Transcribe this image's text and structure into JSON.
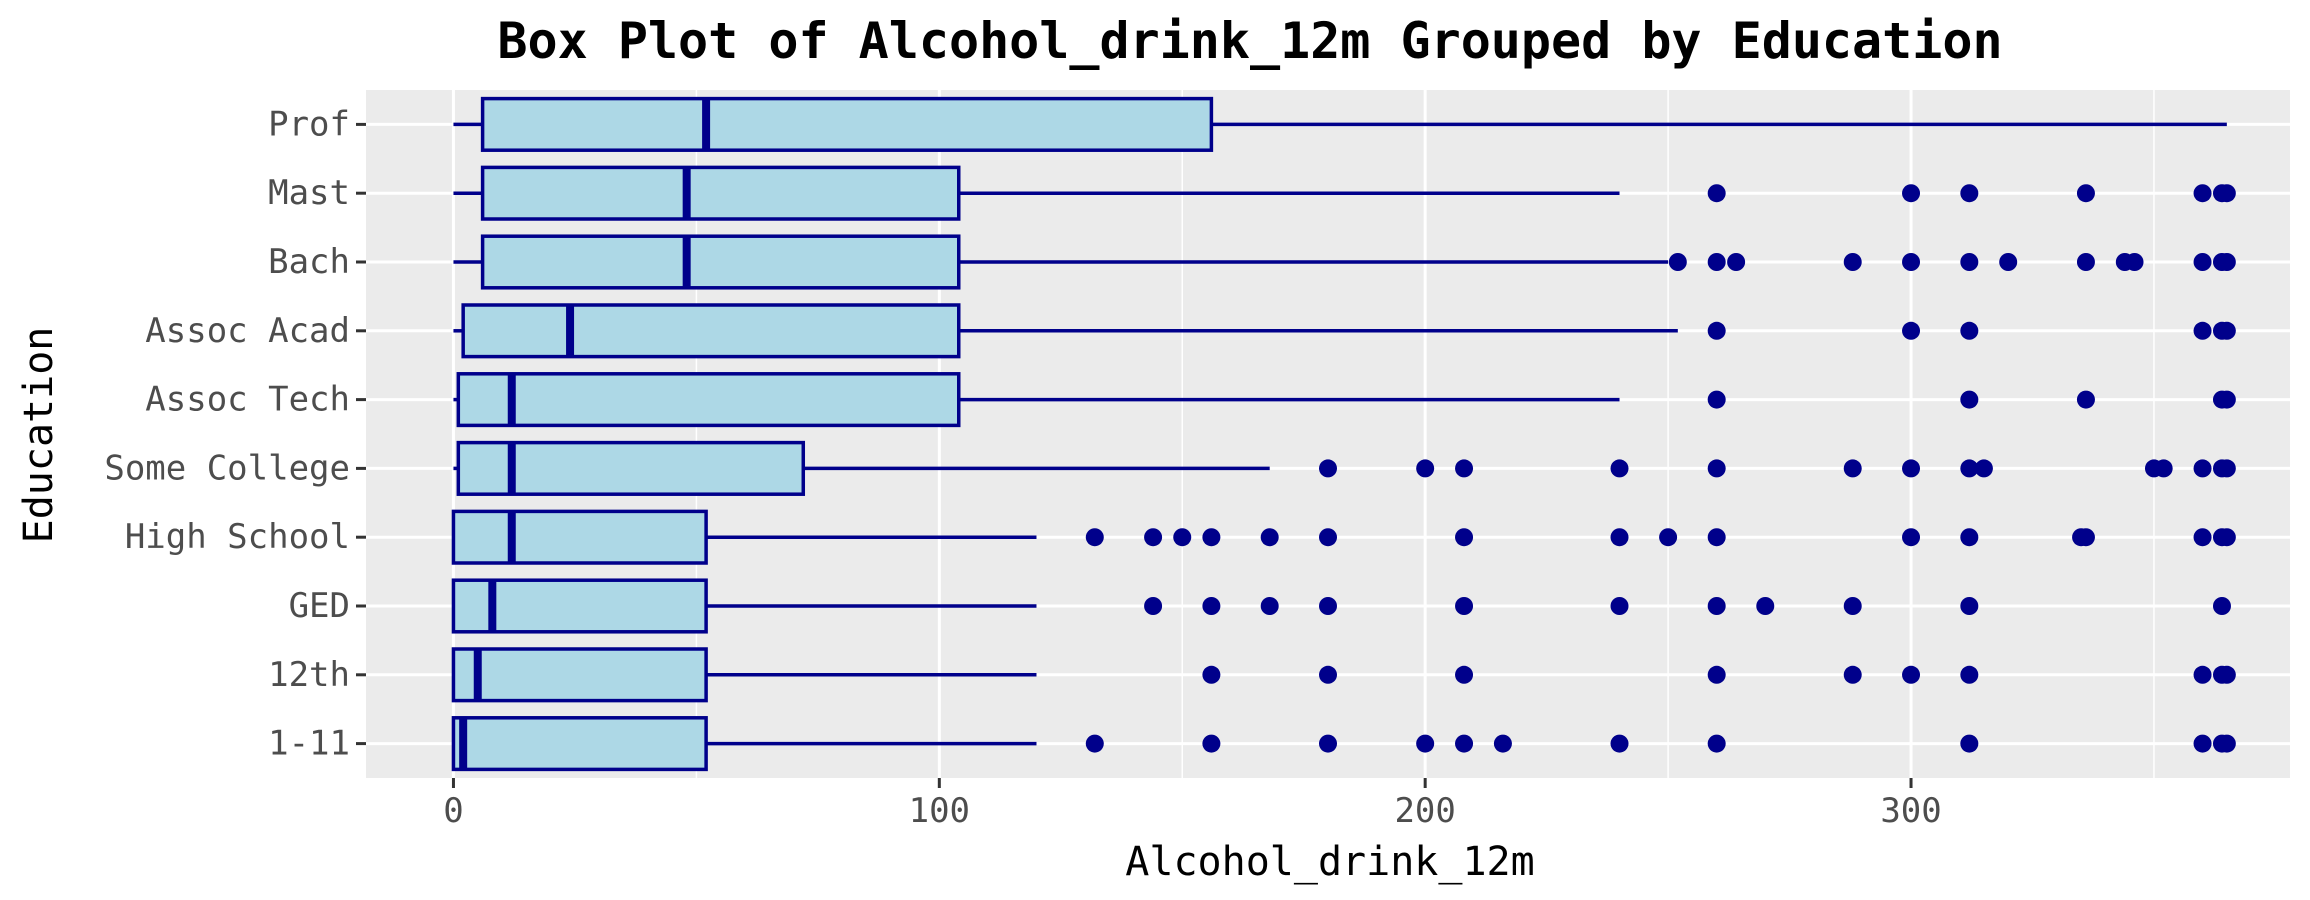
{
  "chart_data": {
    "type": "boxplot",
    "title": "Box Plot of Alcohol_drink_12m Grouped by Education",
    "xlabel": "Alcohol_drink_12m",
    "ylabel": "Education",
    "xlim": [
      -18,
      378
    ],
    "xticks": [
      0,
      100,
      200,
      300
    ],
    "grid": true,
    "colors": {
      "box_fill": "#add8e6",
      "box_stroke": "#00008b",
      "panel": "#ebebeb",
      "grid": "#ffffff"
    },
    "categories": [
      "1-11",
      "12th",
      "GED",
      "High School",
      "Some College",
      "Assoc Tech",
      "Assoc Acad",
      "Bach",
      "Mast",
      "Prof"
    ],
    "boxes": [
      {
        "category": "1-11",
        "whisker_low": 0,
        "q1": 0,
        "median": 2,
        "q3": 52,
        "whisker_high": 120,
        "outliers": [
          132,
          156,
          180,
          200,
          208,
          216,
          240,
          260,
          312,
          360,
          364,
          365
        ]
      },
      {
        "category": "12th",
        "whisker_low": 0,
        "q1": 0,
        "median": 5,
        "q3": 52,
        "whisker_high": 120,
        "outliers": [
          156,
          180,
          208,
          260,
          288,
          300,
          312,
          360,
          364,
          365
        ]
      },
      {
        "category": "GED",
        "whisker_low": 0,
        "q1": 0,
        "median": 8,
        "q3": 52,
        "whisker_high": 120,
        "outliers": [
          144,
          156,
          168,
          180,
          208,
          240,
          260,
          270,
          288,
          312,
          364
        ]
      },
      {
        "category": "High School",
        "whisker_low": 0,
        "q1": 0,
        "median": 12,
        "q3": 52,
        "whisker_high": 120,
        "outliers": [
          132,
          144,
          150,
          156,
          168,
          180,
          208,
          240,
          250,
          260,
          300,
          312,
          335,
          336,
          360,
          364,
          365
        ]
      },
      {
        "category": "Some College",
        "whisker_low": 0,
        "q1": 1,
        "median": 12,
        "q3": 72,
        "whisker_high": 168,
        "outliers": [
          180,
          200,
          208,
          240,
          260,
          288,
          300,
          312,
          315,
          350,
          352,
          360,
          364,
          365
        ]
      },
      {
        "category": "Assoc Tech",
        "whisker_low": 0,
        "q1": 1,
        "median": 12,
        "q3": 104,
        "whisker_high": 240,
        "outliers": [
          260,
          312,
          336,
          364,
          365
        ]
      },
      {
        "category": "Assoc Acad",
        "whisker_low": 0,
        "q1": 2,
        "median": 24,
        "q3": 104,
        "whisker_high": 252,
        "outliers": [
          260,
          300,
          312,
          360,
          364,
          365
        ]
      },
      {
        "category": "Bach",
        "whisker_low": 0,
        "q1": 6,
        "median": 48,
        "q3": 104,
        "whisker_high": 250,
        "outliers": [
          252,
          260,
          264,
          288,
          300,
          312,
          320,
          336,
          344,
          346,
          360,
          364,
          365
        ]
      },
      {
        "category": "Mast",
        "whisker_low": 0,
        "q1": 6,
        "median": 48,
        "q3": 104,
        "whisker_high": 240,
        "outliers": [
          260,
          300,
          312,
          336,
          360,
          364,
          365
        ]
      },
      {
        "category": "Prof",
        "whisker_low": 0,
        "q1": 6,
        "median": 52,
        "q3": 156,
        "whisker_high": 365,
        "outliers": []
      }
    ]
  }
}
